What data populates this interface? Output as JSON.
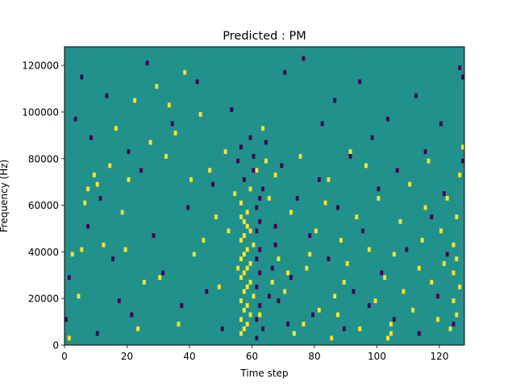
{
  "chart_data": {
    "type": "heatmap",
    "title": "Predicted : PM",
    "xlabel": "Time step",
    "ylabel": "Frequency (Hz)",
    "xlim": [
      0,
      128
    ],
    "ylim": [
      0,
      128000
    ],
    "x_ticks": [
      0,
      20,
      40,
      60,
      80,
      100,
      120
    ],
    "x_tick_labels": [
      "0",
      "20",
      "40",
      "60",
      "80",
      "100",
      "120"
    ],
    "y_ticks": [
      0,
      20000,
      40000,
      60000,
      80000,
      100000,
      120000
    ],
    "y_tick_labels": [
      "0",
      "20000",
      "40000",
      "60000",
      "80000",
      "100000",
      "120000"
    ],
    "n_time_steps": 128,
    "n_freq_bins": 64,
    "colormap": "viridis",
    "value_levels": [
      -1,
      0,
      1
    ],
    "colors": {
      "-1": "#440154",
      "0": "#21918c",
      "1": "#fde725"
    },
    "background_value": 0,
    "cells": [
      {
        "t": 1,
        "f": 1,
        "v": 1
      },
      {
        "t": 2,
        "f": 19,
        "v": 1
      },
      {
        "t": 4,
        "f": 10,
        "v": 1
      },
      {
        "t": 5,
        "f": 20,
        "v": 1
      },
      {
        "t": 6,
        "f": 30,
        "v": 1
      },
      {
        "t": 7,
        "f": 33,
        "v": 1
      },
      {
        "t": 9,
        "f": 36,
        "v": 1
      },
      {
        "t": 10,
        "f": 34,
        "v": 1
      },
      {
        "t": 12,
        "f": 21,
        "v": 1
      },
      {
        "t": 14,
        "f": 38,
        "v": 1
      },
      {
        "t": 16,
        "f": 46,
        "v": 1
      },
      {
        "t": 18,
        "f": 28,
        "v": 1
      },
      {
        "t": 19,
        "f": 20,
        "v": 1
      },
      {
        "t": 20,
        "f": 35,
        "v": 1
      },
      {
        "t": 22,
        "f": 52,
        "v": 1
      },
      {
        "t": 23,
        "f": 3,
        "v": 1
      },
      {
        "t": 25,
        "f": 13,
        "v": 1
      },
      {
        "t": 27,
        "f": 43,
        "v": 1
      },
      {
        "t": 29,
        "f": 55,
        "v": 1
      },
      {
        "t": 30,
        "f": 14,
        "v": 1
      },
      {
        "t": 32,
        "f": 40,
        "v": 1
      },
      {
        "t": 33,
        "f": 51,
        "v": 1
      },
      {
        "t": 35,
        "f": 45,
        "v": 1
      },
      {
        "t": 36,
        "f": 4,
        "v": 1
      },
      {
        "t": 38,
        "f": 58,
        "v": 1
      },
      {
        "t": 40,
        "f": 35,
        "v": 1
      },
      {
        "t": 41,
        "f": 19,
        "v": 1
      },
      {
        "t": 43,
        "f": 49,
        "v": 1
      },
      {
        "t": 44,
        "f": 22,
        "v": 1
      },
      {
        "t": 46,
        "f": 37,
        "v": 1
      },
      {
        "t": 48,
        "f": 27,
        "v": 1
      },
      {
        "t": 49,
        "f": 12,
        "v": 1
      },
      {
        "t": 51,
        "f": 41,
        "v": 1
      },
      {
        "t": 52,
        "f": 24,
        "v": 1
      },
      {
        "t": 54,
        "f": 32,
        "v": 1
      },
      {
        "t": 55,
        "f": 16,
        "v": 1
      },
      {
        "t": 56,
        "f": 2,
        "v": 1
      },
      {
        "t": 56,
        "f": 5,
        "v": 1
      },
      {
        "t": 56,
        "f": 9,
        "v": 1
      },
      {
        "t": 56,
        "f": 14,
        "v": 1
      },
      {
        "t": 56,
        "f": 18,
        "v": 1
      },
      {
        "t": 56,
        "f": 22,
        "v": 1
      },
      {
        "t": 56,
        "f": 27,
        "v": 1
      },
      {
        "t": 56,
        "f": 30,
        "v": 1
      },
      {
        "t": 57,
        "f": 3,
        "v": 1
      },
      {
        "t": 57,
        "f": 7,
        "v": 1
      },
      {
        "t": 57,
        "f": 11,
        "v": 1
      },
      {
        "t": 57,
        "f": 15,
        "v": 1
      },
      {
        "t": 57,
        "f": 19,
        "v": 1
      },
      {
        "t": 57,
        "f": 23,
        "v": 1
      },
      {
        "t": 57,
        "f": 26,
        "v": 1
      },
      {
        "t": 58,
        "f": 4,
        "v": 1
      },
      {
        "t": 58,
        "f": 8,
        "v": 1
      },
      {
        "t": 58,
        "f": 12,
        "v": 1
      },
      {
        "t": 58,
        "f": 16,
        "v": 1
      },
      {
        "t": 58,
        "f": 20,
        "v": 1
      },
      {
        "t": 58,
        "f": 25,
        "v": 1
      },
      {
        "t": 58,
        "f": 28,
        "v": 1
      },
      {
        "t": 59,
        "f": 6,
        "v": 1
      },
      {
        "t": 59,
        "f": 13,
        "v": 1
      },
      {
        "t": 59,
        "f": 17,
        "v": 1
      },
      {
        "t": 59,
        "f": 24,
        "v": 1
      },
      {
        "t": 59,
        "f": 33,
        "v": 1
      },
      {
        "t": 60,
        "f": 10,
        "v": 1
      },
      {
        "t": 60,
        "f": 21,
        "v": 1
      },
      {
        "t": 61,
        "f": 37,
        "v": 1
      },
      {
        "t": 62,
        "f": 6,
        "v": 1
      },
      {
        "t": 63,
        "f": 46,
        "v": 1
      },
      {
        "t": 64,
        "f": 39,
        "v": 1
      },
      {
        "t": 65,
        "f": 31,
        "v": 1
      },
      {
        "t": 66,
        "f": 13,
        "v": 1
      },
      {
        "t": 67,
        "f": 36,
        "v": 1
      },
      {
        "t": 68,
        "f": 18,
        "v": 1
      },
      {
        "t": 70,
        "f": 11,
        "v": 1
      },
      {
        "t": 71,
        "f": 15,
        "v": 1
      },
      {
        "t": 72,
        "f": 28,
        "v": 1
      },
      {
        "t": 73,
        "f": 2,
        "v": 1
      },
      {
        "t": 75,
        "f": 40,
        "v": 1
      },
      {
        "t": 76,
        "f": 4,
        "v": 1
      },
      {
        "t": 77,
        "f": 16,
        "v": 1
      },
      {
        "t": 78,
        "f": 19,
        "v": 1
      },
      {
        "t": 80,
        "f": 24,
        "v": 1
      },
      {
        "t": 81,
        "f": 7,
        "v": 1
      },
      {
        "t": 83,
        "f": 30,
        "v": 1
      },
      {
        "t": 84,
        "f": 35,
        "v": 1
      },
      {
        "t": 85,
        "f": 1,
        "v": 1
      },
      {
        "t": 86,
        "f": 10,
        "v": 1
      },
      {
        "t": 87,
        "f": 6,
        "v": 1
      },
      {
        "t": 88,
        "f": 22,
        "v": 1
      },
      {
        "t": 89,
        "f": 13,
        "v": 1
      },
      {
        "t": 90,
        "f": 17,
        "v": 1
      },
      {
        "t": 91,
        "f": 41,
        "v": 1
      },
      {
        "t": 93,
        "f": 27,
        "v": 1
      },
      {
        "t": 94,
        "f": 3,
        "v": 1
      },
      {
        "t": 96,
        "f": 38,
        "v": 1
      },
      {
        "t": 97,
        "f": 20,
        "v": 1
      },
      {
        "t": 99,
        "f": 9,
        "v": 1
      },
      {
        "t": 100,
        "f": 31,
        "v": 1
      },
      {
        "t": 102,
        "f": 14,
        "v": 1
      },
      {
        "t": 103,
        "f": 1,
        "v": 1
      },
      {
        "t": 104,
        "f": 2,
        "v": 1
      },
      {
        "t": 104,
        "f": 4,
        "v": 1
      },
      {
        "t": 105,
        "f": 19,
        "v": 1
      },
      {
        "t": 107,
        "f": 26,
        "v": 1
      },
      {
        "t": 108,
        "f": 11,
        "v": 1
      },
      {
        "t": 110,
        "f": 34,
        "v": 1
      },
      {
        "t": 111,
        "f": 7,
        "v": 1
      },
      {
        "t": 113,
        "f": 16,
        "v": 1
      },
      {
        "t": 114,
        "f": 22,
        "v": 1
      },
      {
        "t": 115,
        "f": 29,
        "v": 1
      },
      {
        "t": 116,
        "f": 39,
        "v": 1
      },
      {
        "t": 117,
        "f": 13,
        "v": 1
      },
      {
        "t": 119,
        "f": 5,
        "v": 1
      },
      {
        "t": 120,
        "f": 24,
        "v": 1
      },
      {
        "t": 121,
        "f": 17,
        "v": 1
      },
      {
        "t": 122,
        "f": 31,
        "v": 1
      },
      {
        "t": 123,
        "f": 3,
        "v": 1
      },
      {
        "t": 124,
        "f": 9,
        "v": 1
      },
      {
        "t": 124,
        "f": 15,
        "v": 1
      },
      {
        "t": 124,
        "f": 21,
        "v": 1
      },
      {
        "t": 125,
        "f": 6,
        "v": 1
      },
      {
        "t": 125,
        "f": 18,
        "v": 1
      },
      {
        "t": 125,
        "f": 27,
        "v": 1
      },
      {
        "t": 126,
        "f": 12,
        "v": 1
      },
      {
        "t": 126,
        "f": 36,
        "v": 1
      },
      {
        "t": 127,
        "f": 42,
        "v": 1
      },
      {
        "t": 0,
        "f": 5,
        "v": -1
      },
      {
        "t": 1,
        "f": 14,
        "v": -1
      },
      {
        "t": 3,
        "f": 48,
        "v": -1
      },
      {
        "t": 5,
        "f": 57,
        "v": -1
      },
      {
        "t": 7,
        "f": 25,
        "v": -1
      },
      {
        "t": 8,
        "f": 44,
        "v": -1
      },
      {
        "t": 10,
        "f": 2,
        "v": -1
      },
      {
        "t": 11,
        "f": 31,
        "v": -1
      },
      {
        "t": 13,
        "f": 53,
        "v": -1
      },
      {
        "t": 15,
        "f": 18,
        "v": -1
      },
      {
        "t": 17,
        "f": 9,
        "v": -1
      },
      {
        "t": 20,
        "f": 41,
        "v": -1
      },
      {
        "t": 21,
        "f": 6,
        "v": -1
      },
      {
        "t": 24,
        "f": 37,
        "v": -1
      },
      {
        "t": 26,
        "f": 60,
        "v": -1
      },
      {
        "t": 28,
        "f": 23,
        "v": -1
      },
      {
        "t": 31,
        "f": 15,
        "v": -1
      },
      {
        "t": 34,
        "f": 47,
        "v": -1
      },
      {
        "t": 37,
        "f": 8,
        "v": -1
      },
      {
        "t": 39,
        "f": 29,
        "v": -1
      },
      {
        "t": 42,
        "f": 56,
        "v": -1
      },
      {
        "t": 45,
        "f": 11,
        "v": -1
      },
      {
        "t": 47,
        "f": 34,
        "v": -1
      },
      {
        "t": 50,
        "f": 3,
        "v": -1
      },
      {
        "t": 53,
        "f": 50,
        "v": -1
      },
      {
        "t": 55,
        "f": 39,
        "v": -1
      },
      {
        "t": 56,
        "f": 42,
        "v": -1
      },
      {
        "t": 57,
        "f": 35,
        "v": -1
      },
      {
        "t": 59,
        "f": 44,
        "v": -1
      },
      {
        "t": 60,
        "f": 37,
        "v": -1
      },
      {
        "t": 60,
        "f": 40,
        "v": -1
      },
      {
        "t": 61,
        "f": 1,
        "v": -1
      },
      {
        "t": 61,
        "f": 5,
        "v": -1
      },
      {
        "t": 61,
        "f": 12,
        "v": -1
      },
      {
        "t": 61,
        "f": 18,
        "v": -1
      },
      {
        "t": 61,
        "f": 24,
        "v": -1
      },
      {
        "t": 61,
        "f": 29,
        "v": -1
      },
      {
        "t": 62,
        "f": 8,
        "v": -1
      },
      {
        "t": 62,
        "f": 15,
        "v": -1
      },
      {
        "t": 62,
        "f": 20,
        "v": -1
      },
      {
        "t": 62,
        "f": 26,
        "v": -1
      },
      {
        "t": 62,
        "f": 31,
        "v": -1
      },
      {
        "t": 63,
        "f": 3,
        "v": -1
      },
      {
        "t": 63,
        "f": 33,
        "v": -1
      },
      {
        "t": 64,
        "f": 43,
        "v": -1
      },
      {
        "t": 65,
        "f": 10,
        "v": -1
      },
      {
        "t": 66,
        "f": 16,
        "v": -1
      },
      {
        "t": 67,
        "f": 21,
        "v": -1
      },
      {
        "t": 67,
        "f": 25,
        "v": -1
      },
      {
        "t": 68,
        "f": 9,
        "v": -1
      },
      {
        "t": 69,
        "f": 38,
        "v": -1
      },
      {
        "t": 70,
        "f": 58,
        "v": -1
      },
      {
        "t": 71,
        "f": 4,
        "v": -1
      },
      {
        "t": 72,
        "f": 14,
        "v": -1
      },
      {
        "t": 74,
        "f": 31,
        "v": -1
      },
      {
        "t": 76,
        "f": 61,
        "v": -1
      },
      {
        "t": 78,
        "f": 23,
        "v": -1
      },
      {
        "t": 79,
        "f": 6,
        "v": -1
      },
      {
        "t": 81,
        "f": 35,
        "v": -1
      },
      {
        "t": 82,
        "f": 47,
        "v": -1
      },
      {
        "t": 84,
        "f": 18,
        "v": -1
      },
      {
        "t": 86,
        "f": 52,
        "v": -1
      },
      {
        "t": 87,
        "f": 29,
        "v": -1
      },
      {
        "t": 89,
        "f": 3,
        "v": -1
      },
      {
        "t": 91,
        "f": 40,
        "v": -1
      },
      {
        "t": 92,
        "f": 11,
        "v": -1
      },
      {
        "t": 94,
        "f": 56,
        "v": -1
      },
      {
        "t": 95,
        "f": 24,
        "v": -1
      },
      {
        "t": 97,
        "f": 8,
        "v": -1
      },
      {
        "t": 98,
        "f": 44,
        "v": -1
      },
      {
        "t": 100,
        "f": 33,
        "v": -1
      },
      {
        "t": 101,
        "f": 15,
        "v": -1
      },
      {
        "t": 103,
        "f": 48,
        "v": -1
      },
      {
        "t": 105,
        "f": 5,
        "v": -1
      },
      {
        "t": 106,
        "f": 37,
        "v": -1
      },
      {
        "t": 109,
        "f": 20,
        "v": -1
      },
      {
        "t": 112,
        "f": 53,
        "v": -1
      },
      {
        "t": 113,
        "f": 2,
        "v": -1
      },
      {
        "t": 115,
        "f": 41,
        "v": -1
      },
      {
        "t": 117,
        "f": 27,
        "v": -1
      },
      {
        "t": 119,
        "f": 10,
        "v": -1
      },
      {
        "t": 120,
        "f": 47,
        "v": -1
      },
      {
        "t": 121,
        "f": 32,
        "v": -1
      },
      {
        "t": 122,
        "f": 19,
        "v": -1
      },
      {
        "t": 124,
        "f": 4,
        "v": -1
      },
      {
        "t": 126,
        "f": 59,
        "v": -1
      },
      {
        "t": 127,
        "f": 39,
        "v": -1
      },
      {
        "t": 127,
        "f": 57,
        "v": -1
      }
    ]
  }
}
